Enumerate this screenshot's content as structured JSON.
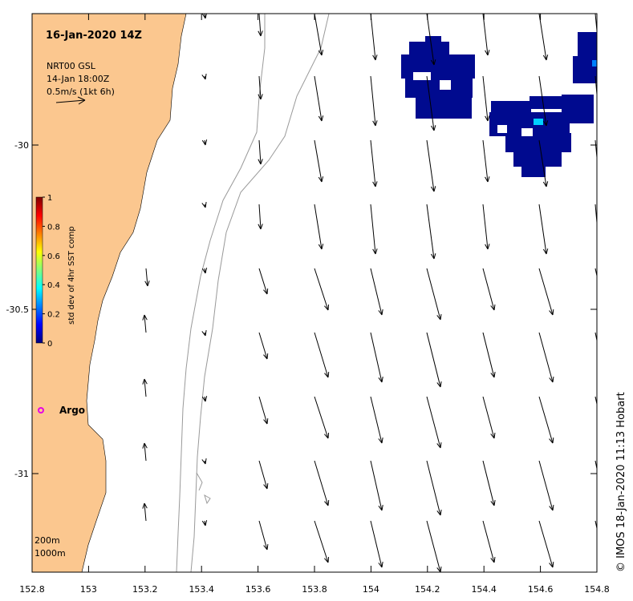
{
  "title": "16-Jan-2020 14Z",
  "legend": {
    "product": "NRT00 GSL",
    "time": "14-Jan 18:00Z",
    "scale": "0.5m/s (1kt 6h)"
  },
  "colorbar": {
    "label": "std dev of 4hr SST comp",
    "ticks": [
      "1",
      "0.8",
      "0.6",
      "0.4",
      "0.2",
      "0"
    ],
    "colors": [
      "#00007f",
      "#0000ff",
      "#007fff",
      "#00ffff",
      "#7fff7f",
      "#ffff00",
      "#ff7f00",
      "#ff0000",
      "#7f0000"
    ]
  },
  "x_axis": {
    "ticks": [
      "152.8",
      "153",
      "153.2",
      "153.4",
      "153.6",
      "153.8",
      "154",
      "154.2",
      "154.4",
      "154.6",
      "154.8"
    ]
  },
  "y_axis": {
    "ticks": [
      "-30",
      "-30.5",
      "-31"
    ]
  },
  "map_extent": {
    "lon": [
      152.8,
      154.8
    ],
    "lat": [
      -31.3,
      -29.6
    ]
  },
  "markers": [
    {
      "label": "Argo",
      "lon": 152.83,
      "lat": -30.81,
      "color": "#e600e6"
    }
  ],
  "isobath_labels": [
    "200m",
    "1000m"
  ],
  "credit": "© IMOS 18-Jan-2020 11:13 Hobart",
  "colors": {
    "land": "#fbc78f",
    "isobath": "#999999",
    "sst_blob": "#000a8f"
  }
}
